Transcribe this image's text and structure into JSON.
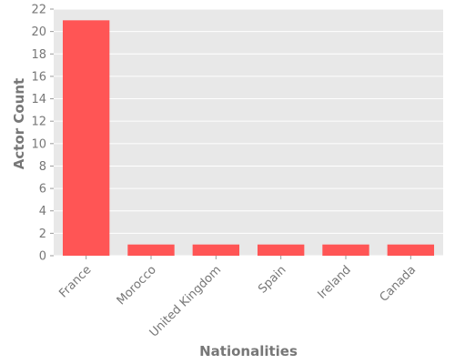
{
  "chart_data": {
    "type": "bar",
    "title": "",
    "xlabel": "Nationalities",
    "ylabel": "Actor Count",
    "categories": [
      "France",
      "Morocco",
      "United Kingdom",
      "Spain",
      "Ireland",
      "Canada"
    ],
    "values": [
      21,
      1,
      1,
      1,
      1,
      1
    ],
    "ylim": [
      0,
      22
    ],
    "yticks": [
      0,
      2,
      4,
      6,
      8,
      10,
      12,
      14,
      16,
      18,
      20,
      22
    ],
    "grid": true,
    "bar_color": "#ff5555",
    "plot_background": "#e8e8e8",
    "grid_color": "#ffffff",
    "text_color": "#777777"
  }
}
